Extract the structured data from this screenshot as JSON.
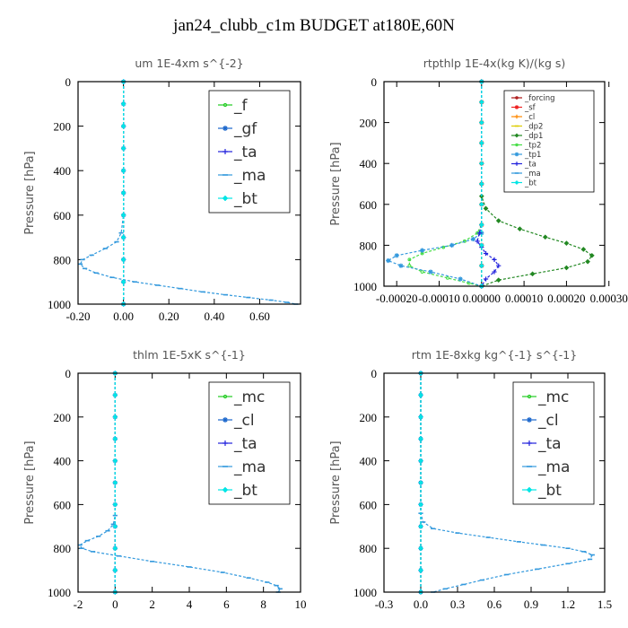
{
  "title": "jan24_clubb_c1m  BUDGET at180E,60N",
  "chart_data": [
    {
      "type": "line",
      "title": "um   1E-4xm  s^{-2}",
      "ylabel": "Pressure  [hPa]",
      "xlim": [
        -0.2,
        0.78
      ],
      "ylim": [
        0,
        1000
      ],
      "y_inverted": true,
      "xticks": [
        "-0.20",
        "0.00",
        "0.20",
        "0.40",
        "0.60"
      ],
      "xtick_values": [
        -0.2,
        0.0,
        0.2,
        0.4,
        0.6
      ],
      "yticks": [
        "0",
        "200",
        "400",
        "600",
        "800",
        "1000"
      ],
      "ytick_values": [
        0,
        200,
        400,
        600,
        800,
        1000
      ],
      "legend_position": "top-right",
      "legend_size": "large",
      "series": [
        {
          "name": "_f",
          "color": "#22cc22",
          "marker": "circle",
          "x": [
            0,
            0,
            0,
            0,
            0,
            0,
            0,
            0,
            0,
            0,
            0
          ],
          "y": [
            0,
            100,
            200,
            300,
            400,
            500,
            600,
            700,
            800,
            900,
            1000
          ]
        },
        {
          "name": "_gf",
          "color": "#1a66cc",
          "marker": "star",
          "x": [
            0,
            0,
            0,
            0,
            0,
            0,
            0,
            0,
            0,
            0,
            0
          ],
          "y": [
            0,
            100,
            200,
            300,
            400,
            500,
            600,
            700,
            800,
            900,
            1000
          ]
        },
        {
          "name": "_ta",
          "color": "#2222dd",
          "marker": "plus",
          "x": [
            0,
            0,
            0,
            0,
            0,
            0,
            0,
            0,
            0,
            0,
            0
          ],
          "y": [
            0,
            100,
            200,
            300,
            400,
            500,
            600,
            700,
            800,
            900,
            1000
          ]
        },
        {
          "name": "_ma",
          "color": "#3399dd",
          "marker": "dash",
          "x": [
            0,
            0,
            -0.01,
            -0.03,
            -0.08,
            -0.14,
            -0.18,
            -0.19,
            -0.17,
            -0.12,
            -0.05,
            0.05,
            0.15,
            0.25,
            0.35,
            0.45,
            0.55,
            0.65,
            0.72,
            0.76
          ],
          "y": [
            0,
            600,
            680,
            720,
            750,
            780,
            800,
            820,
            840,
            860,
            880,
            900,
            915,
            930,
            945,
            958,
            970,
            982,
            992,
            1000
          ]
        },
        {
          "name": "_bt",
          "color": "#00e5e5",
          "marker": "diamond",
          "x": [
            0,
            0,
            0,
            0,
            0,
            0,
            0,
            0,
            0,
            0,
            0
          ],
          "y": [
            0,
            100,
            200,
            300,
            400,
            500,
            600,
            700,
            800,
            900,
            1000
          ]
        }
      ]
    },
    {
      "type": "line",
      "title": "rtpthlp   1E-4x(kg K)/(kg s)",
      "ylabel": "Pressure  [hPa]",
      "xlim": [
        -0.00023,
        0.00029
      ],
      "ylim": [
        0,
        1000
      ],
      "y_inverted": true,
      "xticks": [
        "-0.00020",
        "-0.00010",
        "0.00000",
        "0.00010",
        "0.00020",
        "0.00030"
      ],
      "xtick_values": [
        -0.0002,
        -0.0001,
        0.0,
        0.0001,
        0.0002,
        0.0003
      ],
      "yticks": [
        "0",
        "200",
        "400",
        "600",
        "800",
        "1000"
      ],
      "ytick_values": [
        0,
        200,
        400,
        600,
        800,
        1000
      ],
      "legend_position": "top-right",
      "legend_size": "small",
      "series": [
        {
          "name": "_forcing",
          "color": "#aa1111",
          "marker": "circle",
          "x": [
            0,
            0,
            0,
            0,
            0,
            0,
            0,
            0,
            0,
            0,
            0
          ],
          "y": [
            0,
            100,
            200,
            300,
            400,
            500,
            600,
            700,
            800,
            900,
            1000
          ]
        },
        {
          "name": "_sf",
          "color": "#ee2222",
          "marker": "star",
          "x": [
            0,
            0,
            0,
            0,
            0,
            0,
            0,
            0,
            0,
            0,
            0
          ],
          "y": [
            0,
            100,
            200,
            300,
            400,
            500,
            600,
            700,
            800,
            900,
            1000
          ]
        },
        {
          "name": "_cl",
          "color": "#ff8800",
          "marker": "plus",
          "x": [
            0,
            0,
            0,
            0,
            0,
            0,
            0,
            0,
            0,
            0,
            0
          ],
          "y": [
            0,
            100,
            200,
            300,
            400,
            500,
            600,
            700,
            800,
            900,
            1000
          ]
        },
        {
          "name": "_dp2",
          "color": "#ddcc00",
          "marker": "dash",
          "x": [
            0,
            0,
            0,
            0,
            0,
            0,
            0,
            0,
            0,
            0,
            0
          ],
          "y": [
            0,
            100,
            200,
            300,
            400,
            500,
            600,
            700,
            800,
            900,
            1000
          ]
        },
        {
          "name": "_dp1",
          "color": "#228822",
          "marker": "diamond",
          "x": [
            0,
            0,
            1e-05,
            4e-05,
            9e-05,
            0.00015,
            0.0002,
            0.00024,
            0.00026,
            0.00025,
            0.0002,
            0.00012,
            4e-05,
            0
          ],
          "y": [
            0,
            560,
            620,
            680,
            720,
            760,
            790,
            820,
            850,
            880,
            910,
            940,
            970,
            1000
          ]
        },
        {
          "name": "_tp2",
          "color": "#44dd44",
          "marker": "circle",
          "x": [
            0,
            0,
            -1e-05,
            -4e-05,
            -9e-05,
            -0.00014,
            -0.00017,
            -0.00017,
            -0.00014,
            -8e-05,
            -3e-05,
            0
          ],
          "y": [
            0,
            700,
            740,
            780,
            810,
            840,
            870,
            900,
            930,
            960,
            985,
            1000
          ]
        },
        {
          "name": "_tp1",
          "color": "#3399dd",
          "marker": "star",
          "x": [
            0,
            0,
            -2e-05,
            -7e-05,
            -0.00014,
            -0.0002,
            -0.00022,
            -0.00019,
            -0.00012,
            -5e-05,
            0
          ],
          "y": [
            0,
            740,
            770,
            800,
            825,
            850,
            875,
            900,
            930,
            965,
            1000
          ]
        },
        {
          "name": "_ta",
          "color": "#2222dd",
          "marker": "plus",
          "x": [
            0,
            0,
            -5e-06,
            -1e-05,
            0,
            1e-05,
            3e-05,
            4e-05,
            3e-05,
            1e-05,
            0
          ],
          "y": [
            0,
            700,
            740,
            780,
            810,
            840,
            870,
            900,
            930,
            965,
            1000
          ]
        },
        {
          "name": "_ma",
          "color": "#3399dd",
          "marker": "dash",
          "x": [
            0,
            0,
            0,
            0,
            0,
            0,
            0,
            0,
            0,
            0,
            0
          ],
          "y": [
            0,
            100,
            200,
            300,
            400,
            500,
            600,
            700,
            800,
            900,
            1000
          ]
        },
        {
          "name": "_bt",
          "color": "#00e5e5",
          "marker": "diamond",
          "x": [
            0,
            0,
            0,
            0,
            0,
            0,
            0,
            0,
            0,
            0,
            0
          ],
          "y": [
            0,
            100,
            200,
            300,
            400,
            500,
            600,
            700,
            800,
            900,
            1000
          ]
        }
      ]
    },
    {
      "type": "line",
      "title": "thlm   1E-5xK  s^{-1}",
      "ylabel": "Pressure  [hPa]",
      "xlim": [
        -2,
        10
      ],
      "ylim": [
        0,
        1000
      ],
      "y_inverted": true,
      "xticks": [
        "-2",
        "0",
        "2",
        "4",
        "6",
        "8",
        "10"
      ],
      "xtick_values": [
        -2,
        0,
        2,
        4,
        6,
        8,
        10
      ],
      "yticks": [
        "0",
        "200",
        "400",
        "600",
        "800",
        "1000"
      ],
      "ytick_values": [
        0,
        200,
        400,
        600,
        800,
        1000
      ],
      "legend_position": "top-right",
      "legend_size": "large",
      "series": [
        {
          "name": "_mc",
          "color": "#22cc22",
          "marker": "circle",
          "x": [
            0,
            0,
            0,
            0,
            0,
            0,
            0,
            0,
            0,
            0,
            0
          ],
          "y": [
            0,
            100,
            200,
            300,
            400,
            500,
            600,
            700,
            800,
            900,
            1000
          ]
        },
        {
          "name": "_cl",
          "color": "#1a66cc",
          "marker": "star",
          "x": [
            0,
            0,
            0,
            0,
            0,
            0,
            0,
            0,
            0,
            0,
            0
          ],
          "y": [
            0,
            100,
            200,
            300,
            400,
            500,
            600,
            700,
            800,
            900,
            1000
          ]
        },
        {
          "name": "_ta",
          "color": "#2222dd",
          "marker": "plus",
          "x": [
            0,
            0,
            0,
            0,
            0,
            0,
            0,
            0,
            0,
            0,
            0
          ],
          "y": [
            0,
            100,
            200,
            300,
            400,
            500,
            600,
            700,
            800,
            900,
            1000
          ]
        },
        {
          "name": "_ma",
          "color": "#3399dd",
          "marker": "dash",
          "x": [
            0,
            0,
            -0.1,
            -0.4,
            -0.9,
            -1.5,
            -1.9,
            -1.8,
            -1.2,
            0.2,
            2,
            4,
            5.8,
            7.2,
            8.2,
            8.7,
            8.9,
            8.8
          ],
          "y": [
            0,
            650,
            690,
            720,
            745,
            765,
            785,
            800,
            815,
            835,
            860,
            885,
            910,
            935,
            955,
            970,
            985,
            1000
          ]
        },
        {
          "name": "_bt",
          "color": "#00e5e5",
          "marker": "diamond",
          "x": [
            0,
            0,
            0,
            0,
            0,
            0,
            0,
            0,
            0,
            0,
            0
          ],
          "y": [
            0,
            100,
            200,
            300,
            400,
            500,
            600,
            700,
            800,
            900,
            1000
          ]
        }
      ]
    },
    {
      "type": "line",
      "title": "rtm   1E-8xkg  kg^{-1}  s^{-1}",
      "ylabel": "Pressure  [hPa]",
      "xlim": [
        -0.3,
        1.5
      ],
      "ylim": [
        0,
        1000
      ],
      "y_inverted": true,
      "xticks": [
        "-0.3",
        "0.0",
        "0.3",
        "0.6",
        "0.9",
        "1.2",
        "1.5"
      ],
      "xtick_values": [
        -0.3,
        0.0,
        0.3,
        0.6,
        0.9,
        1.2,
        1.5
      ],
      "yticks": [
        "0",
        "200",
        "400",
        "600",
        "800",
        "1000"
      ],
      "ytick_values": [
        0,
        200,
        400,
        600,
        800,
        1000
      ],
      "legend_position": "top-right",
      "legend_size": "large",
      "series": [
        {
          "name": "_mc",
          "color": "#22cc22",
          "marker": "circle",
          "x": [
            0,
            0,
            0,
            0,
            0,
            0,
            0,
            0,
            0,
            0,
            0
          ],
          "y": [
            0,
            100,
            200,
            300,
            400,
            500,
            600,
            700,
            800,
            900,
            1000
          ]
        },
        {
          "name": "_cl",
          "color": "#1a66cc",
          "marker": "star",
          "x": [
            0,
            0,
            0,
            0,
            0,
            0,
            0,
            0,
            0,
            0,
            0
          ],
          "y": [
            0,
            100,
            200,
            300,
            400,
            500,
            600,
            700,
            800,
            900,
            1000
          ]
        },
        {
          "name": "_ta",
          "color": "#2222dd",
          "marker": "plus",
          "x": [
            0,
            0,
            0,
            0,
            0,
            0,
            0,
            0,
            0,
            0,
            0
          ],
          "y": [
            0,
            100,
            200,
            300,
            400,
            500,
            600,
            700,
            800,
            900,
            1000
          ]
        },
        {
          "name": "_ma",
          "color": "#3399dd",
          "marker": "dash",
          "x": [
            0,
            0,
            0.02,
            0.1,
            0.3,
            0.55,
            0.8,
            1.0,
            1.2,
            1.33,
            1.4,
            1.38,
            1.2,
            0.95,
            0.7,
            0.5,
            0.35,
            0.2,
            0.1
          ],
          "y": [
            0,
            640,
            680,
            710,
            730,
            750,
            770,
            785,
            800,
            815,
            830,
            850,
            870,
            895,
            920,
            945,
            965,
            985,
            1000
          ]
        },
        {
          "name": "_bt",
          "color": "#00e5e5",
          "marker": "diamond",
          "x": [
            0,
            0,
            0,
            0,
            0,
            0,
            0,
            0,
            0,
            0,
            0
          ],
          "y": [
            0,
            100,
            200,
            300,
            400,
            500,
            600,
            700,
            800,
            900,
            1000
          ]
        }
      ]
    }
  ]
}
